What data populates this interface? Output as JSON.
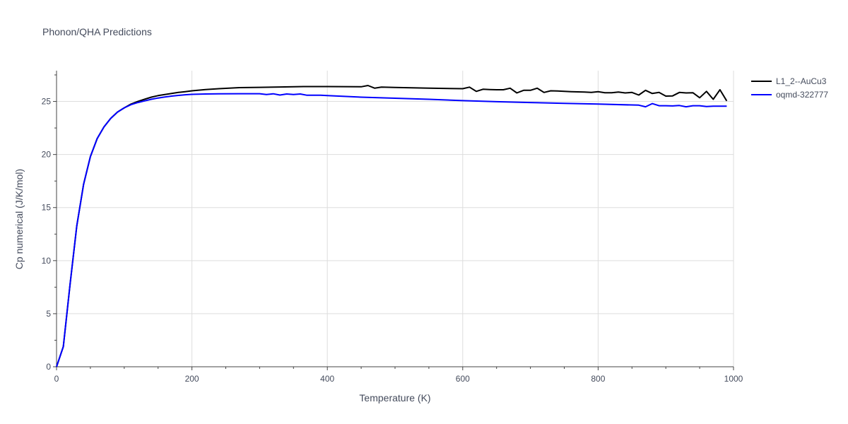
{
  "chart_data": {
    "type": "line",
    "title": "Phonon/QHA Predictions",
    "xlabel": "Temperature (K)",
    "ylabel": "Cp numerical (J/K/mol)",
    "xlim": [
      0,
      1000
    ],
    "ylim": [
      0,
      27.9
    ],
    "xticks": [
      0,
      200,
      400,
      600,
      800,
      1000
    ],
    "yticks": [
      0,
      5,
      10,
      15,
      20,
      25
    ],
    "xtick_labels": [
      "0",
      "200",
      "400",
      "600",
      "800",
      "1000"
    ],
    "ytick_labels": [
      "0",
      "5",
      "10",
      "15",
      "20",
      "25"
    ],
    "grid": true,
    "legend_position": "top-right",
    "series": [
      {
        "name": "L1_2--AuCu3",
        "color": "#000000",
        "x": [
          0,
          10,
          20,
          30,
          40,
          50,
          60,
          70,
          80,
          90,
          100,
          110,
          120,
          130,
          140,
          150,
          160,
          170,
          180,
          190,
          200,
          220,
          240,
          270,
          300,
          330,
          365,
          400,
          450,
          460,
          470,
          480,
          500,
          550,
          600,
          610,
          620,
          630,
          640,
          650,
          660,
          670,
          680,
          690,
          700,
          710,
          720,
          730,
          740,
          750,
          760,
          770,
          780,
          790,
          800,
          810,
          820,
          830,
          840,
          850,
          860,
          870,
          880,
          890,
          900,
          910,
          920,
          930,
          940,
          950,
          960,
          970,
          980,
          990
        ],
        "values": [
          0,
          1.9,
          7.8,
          13.3,
          17.2,
          19.8,
          21.5,
          22.6,
          23.4,
          24.0,
          24.4,
          24.75,
          25.0,
          25.2,
          25.4,
          25.55,
          25.65,
          25.75,
          25.85,
          25.92,
          26.0,
          26.12,
          26.2,
          26.3,
          26.33,
          26.36,
          26.4,
          26.4,
          26.38,
          26.5,
          26.25,
          26.35,
          26.32,
          26.25,
          26.2,
          26.35,
          25.95,
          26.15,
          26.12,
          26.1,
          26.1,
          26.25,
          25.8,
          26.05,
          26.05,
          26.25,
          25.85,
          26.0,
          25.98,
          25.95,
          25.92,
          25.9,
          25.88,
          25.85,
          25.92,
          25.82,
          25.82,
          25.88,
          25.8,
          25.85,
          25.6,
          26.05,
          25.75,
          25.85,
          25.5,
          25.52,
          25.85,
          25.8,
          25.82,
          25.35,
          25.95,
          25.2,
          26.1,
          25.05
        ]
      },
      {
        "name": "oqmd-322777",
        "color": "#0000ff",
        "x": [
          0,
          10,
          20,
          30,
          40,
          50,
          60,
          70,
          80,
          90,
          100,
          110,
          120,
          130,
          140,
          150,
          160,
          170,
          180,
          190,
          200,
          220,
          240,
          270,
          300,
          310,
          320,
          330,
          340,
          350,
          360,
          370,
          390,
          400,
          450,
          500,
          550,
          600,
          650,
          700,
          750,
          800,
          860,
          870,
          880,
          890,
          900,
          910,
          920,
          930,
          940,
          950,
          960,
          970,
          980,
          990
        ],
        "values": [
          0,
          1.9,
          7.8,
          13.3,
          17.2,
          19.8,
          21.5,
          22.6,
          23.4,
          24.0,
          24.4,
          24.7,
          24.9,
          25.05,
          25.2,
          25.32,
          25.42,
          25.5,
          25.57,
          25.63,
          25.67,
          25.7,
          25.72,
          25.73,
          25.73,
          25.65,
          25.72,
          25.6,
          25.7,
          25.65,
          25.7,
          25.58,
          25.58,
          25.55,
          25.4,
          25.3,
          25.2,
          25.08,
          24.98,
          24.9,
          24.82,
          24.75,
          24.65,
          24.5,
          24.8,
          24.6,
          24.6,
          24.58,
          24.62,
          24.5,
          24.6,
          24.6,
          24.52,
          24.55,
          24.55,
          24.55
        ]
      }
    ]
  }
}
